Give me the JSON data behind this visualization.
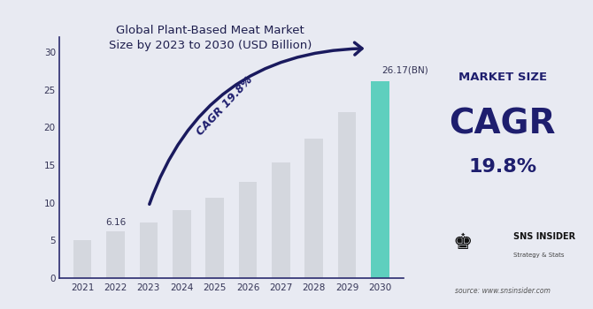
{
  "years": [
    2021,
    2022,
    2023,
    2024,
    2025,
    2026,
    2027,
    2028,
    2029,
    2030
  ],
  "values": [
    5.0,
    6.16,
    7.36,
    9.0,
    10.7,
    12.8,
    15.3,
    18.5,
    22.0,
    26.17
  ],
  "bar_colors": [
    "#d4d7de",
    "#d4d7de",
    "#d4d7de",
    "#d4d7de",
    "#d4d7de",
    "#d4d7de",
    "#d4d7de",
    "#d4d7de",
    "#d4d7de",
    "#5ecfbe"
  ],
  "highlight_label": "26.17(BN)",
  "label_2022": "6.16",
  "title": "Global Plant-Based Meat Market\nSize by 2023 to 2030 (USD Billion)",
  "cagr_text": "CAGR 19.8%",
  "ylim": [
    0,
    32
  ],
  "yticks": [
    0,
    5,
    10,
    15,
    20,
    25,
    30
  ],
  "chart_bg": "#e8eaf2",
  "right_panel_bg": "#c5c7cc",
  "right_label1": "MARKET SIZE",
  "right_label2": "CAGR",
  "right_label3": "19.8%",
  "arrow_color": "#1a1a5e",
  "dark_navy": "#1e1e6e",
  "axis_color": "#2a2a6e",
  "source_text": "source: www.snsinsider.com",
  "sns_text": "SNS INSIDER",
  "sns_sub": "Strategy & Stats"
}
